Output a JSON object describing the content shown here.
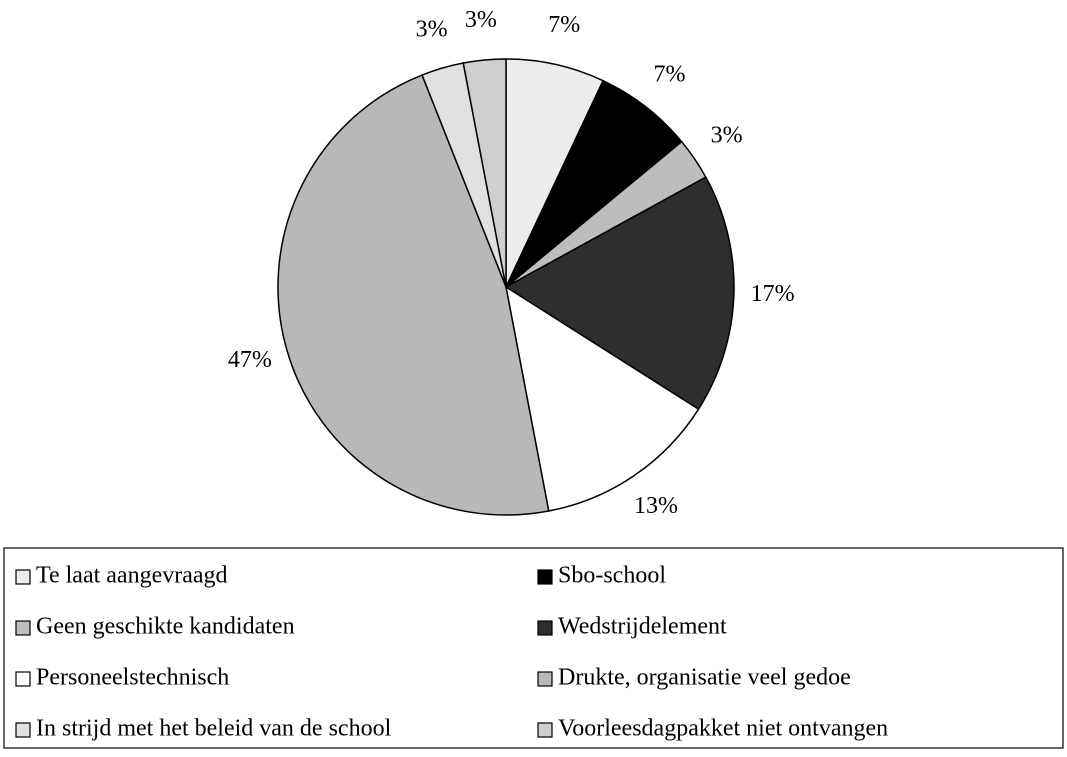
{
  "chart_data": {
    "type": "pie",
    "categories": [
      "Te laat aangevraagd",
      "Sbo-school",
      "Geen geschikte kandidaten",
      "Wedstrijdelement",
      "Personeelstechnisch",
      "Drukte, organisatie veel gedoe",
      "In strijd met het beleid van de school",
      "Voorleesdagpakket niet ontvangen"
    ],
    "values": [
      7,
      7,
      3,
      17,
      13,
      47,
      3,
      3
    ],
    "value_labels": [
      "7%",
      "7%",
      "3%",
      "17%",
      "13%",
      "47%",
      "3%",
      "3%"
    ],
    "colors": [
      "#ececec",
      "#000000",
      "#bdbdbd",
      "#2e2e2e",
      "#ffffff",
      "#b8b8b8",
      "#e0e0e0",
      "#cfcfcf"
    ],
    "legend": "bottom"
  }
}
